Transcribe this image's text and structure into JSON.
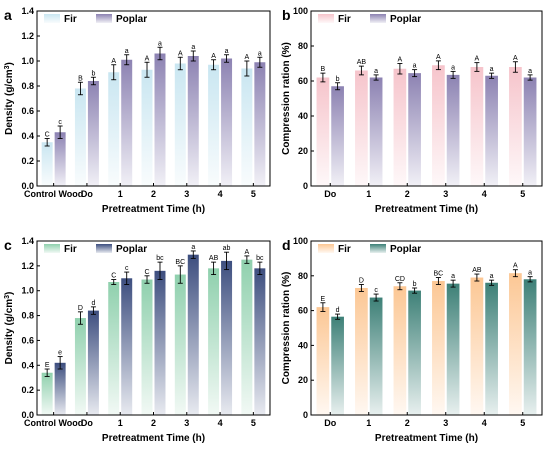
{
  "chart_data": [
    {
      "panel": "a",
      "type": "bar",
      "xlabel": "Pretreatment Time (h)",
      "ylabel": "Density (g/cm³)",
      "ylabel_main": "Density (g/cm",
      "ylabel_sup": "3",
      "ylabel_end": ")",
      "ylim": [
        0,
        1.4
      ],
      "yticks": [
        "0.0",
        "0.2",
        "0.4",
        "0.6",
        "0.8",
        "1.0",
        "1.2",
        "1.4"
      ],
      "categories": [
        "Control Wood",
        "Do",
        "1",
        "2",
        "3",
        "4",
        "5"
      ],
      "legend": [
        "Fir",
        "Poplar"
      ],
      "legend_position": "top-left",
      "colors": [
        "#c9e6f1",
        "#8c82b2"
      ],
      "series": [
        {
          "name": "Fir",
          "values": [
            0.35,
            0.78,
            0.91,
            0.93,
            0.98,
            0.97,
            0.94
          ],
          "errors": [
            0.03,
            0.05,
            0.06,
            0.06,
            0.05,
            0.04,
            0.06
          ],
          "labels": [
            "C",
            "B",
            "A",
            "A",
            "A",
            "A",
            "A"
          ]
        },
        {
          "name": "Poplar",
          "values": [
            0.43,
            0.84,
            1.01,
            1.06,
            1.04,
            1.02,
            0.99
          ],
          "errors": [
            0.05,
            0.03,
            0.04,
            0.05,
            0.04,
            0.03,
            0.04
          ],
          "labels": [
            "c",
            "b",
            "a",
            "a",
            "a",
            "a",
            "a"
          ]
        }
      ]
    },
    {
      "panel": "b",
      "type": "bar",
      "xlabel": "Pretreatment Time (h)",
      "ylabel": "Compression ration (%)",
      "ylabel_main": "Compression ration (%)",
      "ylabel_sup": "",
      "ylabel_end": "",
      "ylim": [
        0,
        100
      ],
      "yticks": [
        "0",
        "20",
        "40",
        "60",
        "80",
        "100"
      ],
      "categories": [
        "Do",
        "1",
        "2",
        "3",
        "4",
        "5"
      ],
      "legend": [
        "Fir",
        "Poplar"
      ],
      "legend_position": "top-left",
      "colors": [
        "#f6c4cb",
        "#8c82b2"
      ],
      "series": [
        {
          "name": "Fir",
          "values": [
            62,
            66,
            67,
            69,
            68,
            68
          ],
          "errors": [
            2.5,
            2.5,
            3,
            2.5,
            2.5,
            3
          ],
          "labels": [
            "B",
            "AB",
            "A",
            "A",
            "A",
            "A"
          ]
        },
        {
          "name": "Poplar",
          "values": [
            57,
            62,
            64.5,
            63.5,
            63,
            62
          ],
          "errors": [
            2,
            1.5,
            2,
            2,
            1.5,
            1.5
          ],
          "labels": [
            "b",
            "a",
            "a",
            "a",
            "a",
            "a"
          ]
        }
      ]
    },
    {
      "panel": "c",
      "type": "bar",
      "xlabel": "Pretreatment Time (h)",
      "ylabel": "Density (g/cm³)",
      "ylabel_main": "Density (g/cm",
      "ylabel_sup": "3",
      "ylabel_end": ")",
      "ylim": [
        0,
        1.4
      ],
      "yticks": [
        "0.0",
        "0.2",
        "0.4",
        "0.6",
        "0.8",
        "1.0",
        "1.2",
        "1.4"
      ],
      "categories": [
        "Control Wood",
        "Do",
        "1",
        "2",
        "3",
        "4",
        "5"
      ],
      "legend": [
        "Fir",
        "Poplar"
      ],
      "legend_position": "top-left",
      "colors": [
        "#8fd0ad",
        "#3d4e7f"
      ],
      "series": [
        {
          "name": "Fir",
          "values": [
            0.34,
            0.78,
            1.07,
            1.09,
            1.13,
            1.18,
            1.25
          ],
          "errors": [
            0.03,
            0.05,
            0.02,
            0.03,
            0.07,
            0.05,
            0.03
          ],
          "labels": [
            "E",
            "D",
            "C",
            "C",
            "BC",
            "AB",
            "A"
          ]
        },
        {
          "name": "Poplar",
          "values": [
            0.42,
            0.84,
            1.1,
            1.16,
            1.29,
            1.24,
            1.18
          ],
          "errors": [
            0.05,
            0.03,
            0.05,
            0.07,
            0.03,
            0.07,
            0.05
          ],
          "labels": [
            "e",
            "d",
            "c",
            "bc",
            "a",
            "ab",
            "bc"
          ]
        }
      ]
    },
    {
      "panel": "d",
      "type": "bar",
      "xlabel": "Pretreatment Time (h)",
      "ylabel": "Compression ration (%)",
      "ylabel_main": "Compression ration (%)",
      "ylabel_sup": "",
      "ylabel_end": "",
      "ylim": [
        0,
        100
      ],
      "yticks": [
        "0",
        "20",
        "40",
        "60",
        "80",
        "100"
      ],
      "categories": [
        "Do",
        "1",
        "2",
        "3",
        "4",
        "5"
      ],
      "legend": [
        "Fir",
        "Poplar"
      ],
      "legend_position": "top-left",
      "colors": [
        "#fcc794",
        "#3d8077"
      ],
      "series": [
        {
          "name": "Fir",
          "values": [
            62,
            73,
            74,
            77,
            79,
            81.5
          ],
          "errors": [
            2.5,
            2,
            2,
            2,
            2,
            2
          ],
          "labels": [
            "E",
            "D",
            "CD",
            "BC",
            "AB",
            "A"
          ]
        },
        {
          "name": "Poplar",
          "values": [
            56.5,
            67.5,
            71.5,
            75.5,
            76,
            78
          ],
          "errors": [
            1.5,
            2,
            1.5,
            2,
            1.5,
            1.5
          ],
          "labels": [
            "d",
            "c",
            "b",
            "a",
            "a",
            "a"
          ]
        }
      ]
    }
  ]
}
